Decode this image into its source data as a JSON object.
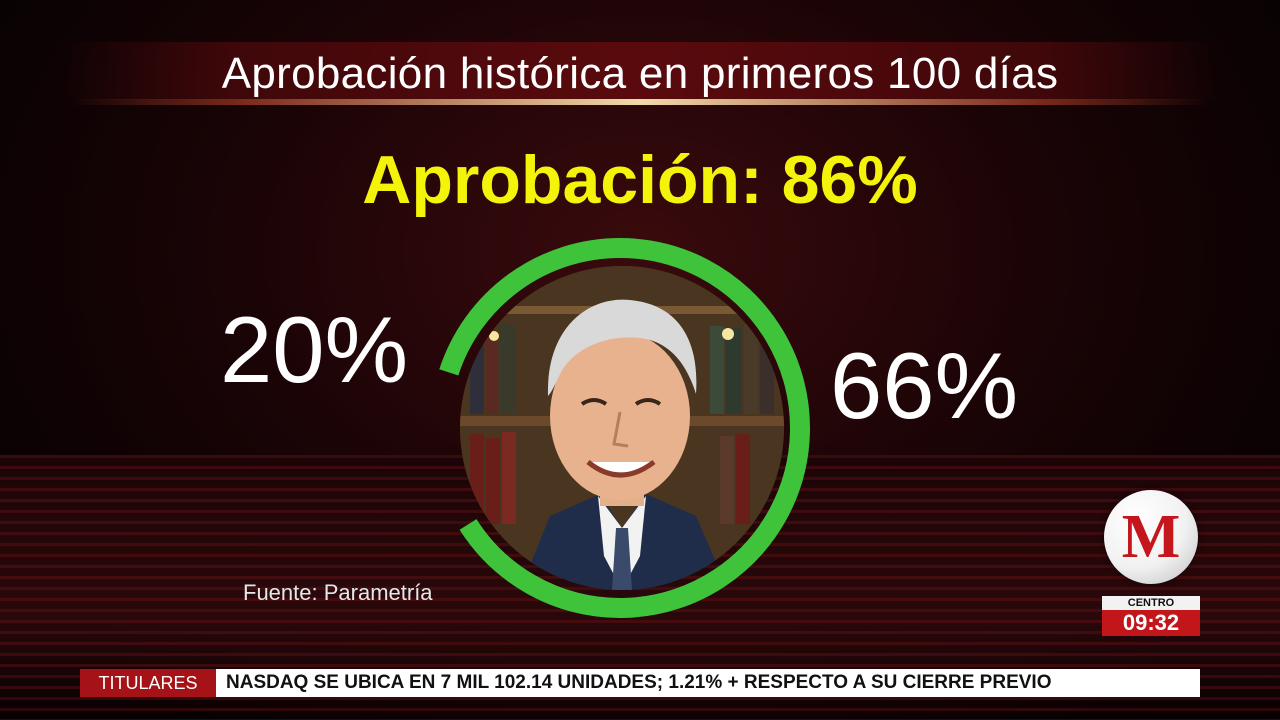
{
  "title": "Aprobación histórica en primeros 100 días",
  "headline": "Aprobación: 86%",
  "left_value": "20%",
  "right_value": "66%",
  "source": "Fuente: Parametría",
  "ring": {
    "right_segment_fraction": 0.66,
    "left_segment_fraction": 0.2,
    "color": "#3ec33a"
  },
  "logo": {
    "letter": "M",
    "color": "#c4161c"
  },
  "clock": {
    "label": "CENTRO",
    "time": "09:32"
  },
  "ticker": {
    "tag": "TITULARES",
    "text": "NASDAQ SE UBICA EN 7 MIL 102.14 UNIDADES; 1.21% + RESPECTO A SU CIERRE PREVIO"
  },
  "colors": {
    "headline": "#f4f40a",
    "accent_red": "#c2161b"
  }
}
